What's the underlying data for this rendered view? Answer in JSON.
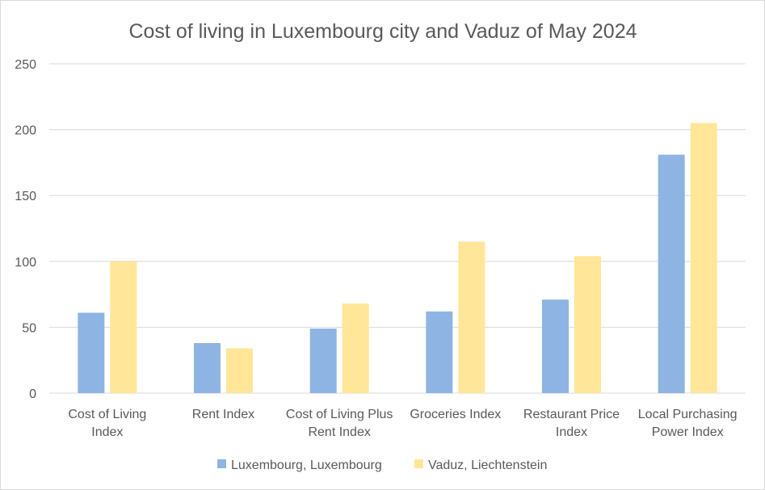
{
  "chart_data": {
    "type": "bar",
    "title": "Cost of living in Luxembourg city and Vaduz of May 2024",
    "xlabel": "",
    "ylabel": "",
    "ylim": [
      0,
      250
    ],
    "yticks": [
      0,
      50,
      100,
      150,
      200,
      250
    ],
    "grid": true,
    "legend_position": "bottom",
    "categories": [
      [
        "Cost of Living",
        "Index"
      ],
      [
        "Rent Index"
      ],
      [
        "Cost of Living Plus",
        "Rent Index"
      ],
      [
        "Groceries Index"
      ],
      [
        "Restaurant Price",
        "Index"
      ],
      [
        "Local Purchasing",
        "Power Index"
      ]
    ],
    "series": [
      {
        "name": "Luxembourg, Luxembourg",
        "color": "#8eb4e3",
        "values": [
          61,
          38,
          49,
          62,
          71,
          181
        ]
      },
      {
        "name": "Vaduz, Liechtenstein",
        "color": "#ffe699",
        "values": [
          100,
          34,
          68,
          115,
          104,
          205
        ]
      }
    ],
    "colors": {
      "gridline": "#d9d9d9",
      "text": "#595959"
    }
  }
}
